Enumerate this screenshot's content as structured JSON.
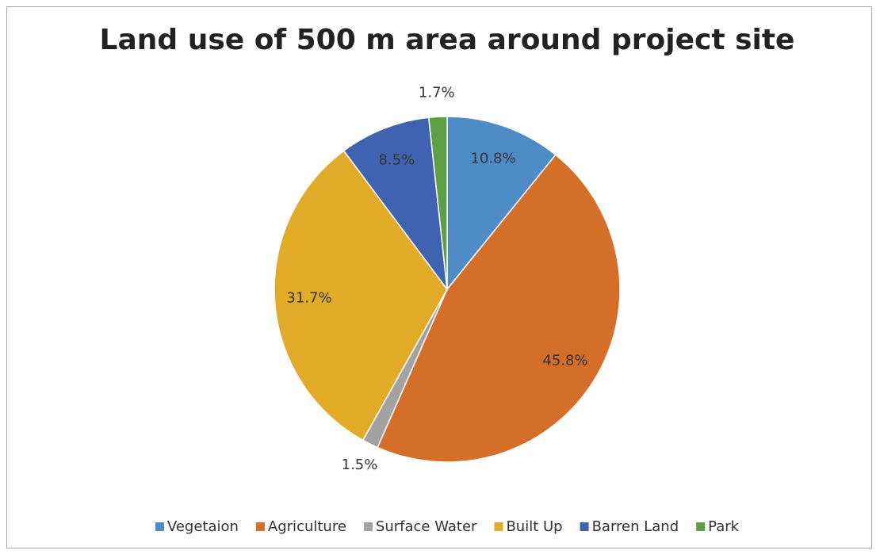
{
  "chart_data": {
    "type": "pie",
    "title": "Land use of 500 m area around project site",
    "categories": [
      "Vegetaion",
      "Agriculture",
      "Surface Water",
      "Built Up",
      "Barren Land",
      "Park"
    ],
    "values": [
      10.8,
      45.8,
      1.5,
      31.7,
      8.5,
      1.7
    ],
    "value_labels": [
      "10.8%",
      "45.8%",
      "1.5%",
      "31.7%",
      "8.5%",
      "1.7%"
    ],
    "colors": [
      "#4f8bc6",
      "#d46e29",
      "#a2a2a2",
      "#e1ab27",
      "#3f63b0",
      "#5e9f44"
    ],
    "legend": "bottom"
  }
}
